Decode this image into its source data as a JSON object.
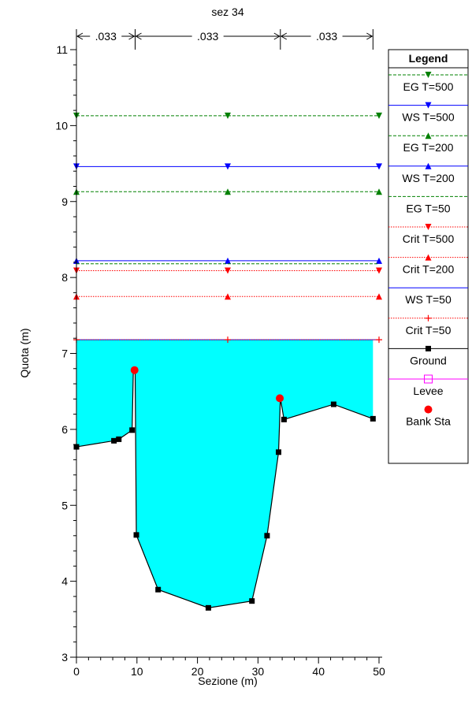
{
  "chart_data": {
    "type": "area",
    "title": "sez 34",
    "xlabel": "Sezione (m)",
    "ylabel": "Quota (m)",
    "xlim": [
      0,
      50
    ],
    "ylim": [
      3,
      11
    ],
    "x_ticks": [
      "0",
      "10",
      "20",
      "30",
      "40",
      "50"
    ],
    "y_ticks": [
      "3",
      "4",
      "5",
      "6",
      "7",
      "8",
      "9",
      "10",
      "11"
    ],
    "grid": false,
    "manning": {
      "breaks": [
        0,
        9.7,
        33.7,
        49
      ],
      "labels": [
        ".033",
        ".033",
        ".033"
      ]
    },
    "ground": {
      "name": "Ground",
      "color": "#000000",
      "fill": "#00ffff",
      "x": [
        0,
        6.2,
        7.0,
        9.2,
        9.4,
        9.7,
        9.9,
        13.5,
        21.8,
        29.0,
        31.5,
        33.4,
        33.7,
        34.3,
        42.5,
        49.0
      ],
      "y": [
        5.77,
        5.85,
        5.87,
        5.99,
        6.78,
        6.78,
        4.61,
        3.89,
        3.65,
        3.74,
        4.6,
        5.7,
        6.41,
        6.13,
        6.33,
        6.14
      ]
    },
    "markers_x": [
      0,
      6.2,
      7.0,
      9.2,
      9.9,
      13.5,
      21.8,
      29.0,
      31.5,
      33.4,
      34.3,
      42.5,
      49.0
    ],
    "markers_y": [
      5.77,
      5.85,
      5.87,
      5.99,
      4.61,
      3.89,
      3.65,
      3.74,
      4.6,
      5.7,
      6.13,
      6.33,
      6.14
    ],
    "water_fill_level": 7.18,
    "bank_stations": {
      "name": "Bank Sta",
      "color": "#ff0000",
      "x": [
        9.6,
        33.6
      ],
      "y": [
        6.78,
        6.41
      ]
    },
    "levels": [
      {
        "name": "EG T=500",
        "y": 10.13,
        "color": "#008000",
        "dash": "dashed",
        "marker": "tri-down"
      },
      {
        "name": "WS T=500",
        "y": 9.46,
        "color": "#0000ff",
        "dash": "solid",
        "marker": "tri-down"
      },
      {
        "name": "EG T=200",
        "y": 9.13,
        "color": "#008000",
        "dash": "dashed",
        "marker": "tri-up"
      },
      {
        "name": "WS T=200",
        "y": 8.22,
        "color": "#0000ff",
        "dash": "solid",
        "marker": "tri-up"
      },
      {
        "name": "EG T=50",
        "y": 8.18,
        "color": "#008000",
        "dash": "dashed",
        "marker": "none"
      },
      {
        "name": "Crit T=500",
        "y": 8.09,
        "color": "#ff0000",
        "dash": "dotted",
        "marker": "tri-down"
      },
      {
        "name": "Crit T=200",
        "y": 7.75,
        "color": "#ff0000",
        "dash": "dotted",
        "marker": "tri-up"
      },
      {
        "name": "WS T=50",
        "y": 7.18,
        "color": "#0000ff",
        "dash": "solid",
        "marker": "none"
      },
      {
        "name": "Crit T=50",
        "y": 7.18,
        "color": "#ff0000",
        "dash": "dotted",
        "marker": "plus"
      }
    ],
    "legend": {
      "title": "Legend",
      "placement": "right",
      "entries": [
        {
          "name": "EG T=500",
          "color": "#008000",
          "dash": "dashed",
          "marker": "tri-down"
        },
        {
          "name": "WS T=500",
          "color": "#0000ff",
          "dash": "solid",
          "marker": "tri-down"
        },
        {
          "name": "EG T=200",
          "color": "#008000",
          "dash": "dashed",
          "marker": "tri-up"
        },
        {
          "name": "WS T=200",
          "color": "#0000ff",
          "dash": "solid",
          "marker": "tri-up"
        },
        {
          "name": "EG T=50",
          "color": "#008000",
          "dash": "dashed",
          "marker": "none"
        },
        {
          "name": "Crit T=500",
          "color": "#ff0000",
          "dash": "dotted",
          "marker": "tri-down"
        },
        {
          "name": "Crit T=200",
          "color": "#ff0000",
          "dash": "dotted",
          "marker": "tri-up"
        },
        {
          "name": "WS T=50",
          "color": "#0000ff",
          "dash": "solid",
          "marker": "none"
        },
        {
          "name": "Crit T=50",
          "color": "#ff0000",
          "dash": "dotted",
          "marker": "plus"
        },
        {
          "name": "Ground",
          "color": "#000000",
          "dash": "solid",
          "marker": "square"
        },
        {
          "name": "Levee",
          "color": "#ff00ff",
          "dash": "solid",
          "marker": "open-square"
        },
        {
          "name": "Bank Sta",
          "color": "#ff0000",
          "dash": "none",
          "marker": "circle"
        }
      ]
    }
  }
}
